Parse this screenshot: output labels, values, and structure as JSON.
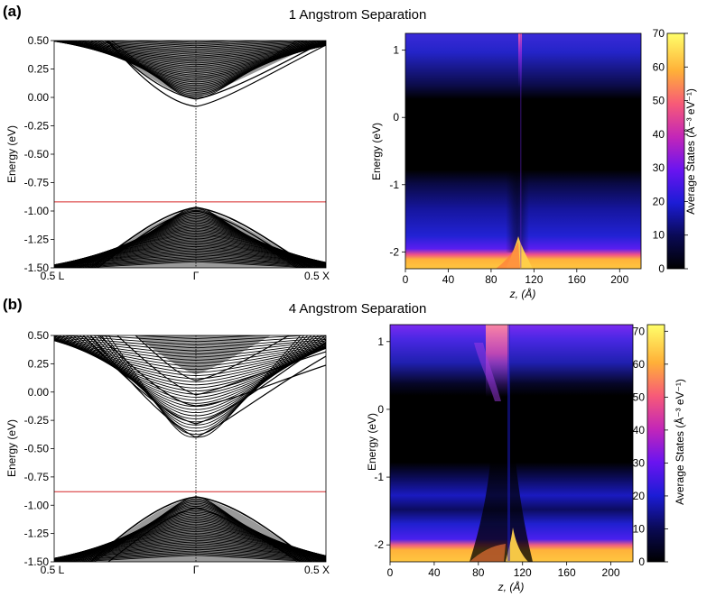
{
  "chart_data": [
    {
      "panel": "(a)",
      "title": "1 Angstrom Separation",
      "band": {
        "type": "line",
        "ylabel": "Energy (eV)",
        "ylim": [
          -1.5,
          0.5
        ],
        "yticks": [
          "0.50",
          "0.25",
          "0.00",
          "-0.25",
          "-0.50",
          "-0.75",
          "-1.00",
          "-1.25",
          "-1.50"
        ],
        "xticks": [
          "0.5 L",
          "Γ",
          "0.5 X"
        ],
        "fermi_line_energy": -0.92,
        "conduction_min_energy": 0.0,
        "valence_max_energy": -0.97,
        "conduction_band_color": "#000000",
        "fill_color": "#9a9a9a",
        "fermi_line_color": "#d62728"
      },
      "ldos": {
        "type": "heatmap",
        "xlabel": "z, (Å)",
        "ylabel": "Energy (eV)",
        "xlim": [
          0,
          220
        ],
        "ylim": [
          -2.25,
          1.25
        ],
        "xticks": [
          "0",
          "40",
          "80",
          "120",
          "160",
          "200"
        ],
        "yticks": [
          "1",
          "0",
          "-1",
          "-2"
        ],
        "interface_z": 110,
        "colorbar_label": "Average States (Å⁻³ eV⁻¹)",
        "colorbar_ticks": [
          "70",
          "60",
          "50",
          "40",
          "30",
          "20",
          "10",
          "0"
        ],
        "clim": [
          0,
          70
        ],
        "colormap": "gnuplot2"
      }
    },
    {
      "panel": "(b)",
      "title": "4 Angstrom Separation",
      "band": {
        "type": "line",
        "ylabel": "Energy (eV)",
        "ylim": [
          -1.5,
          0.5
        ],
        "yticks": [
          "0.50",
          "0.25",
          "0.00",
          "-0.25",
          "-0.50",
          "-0.75",
          "-1.00",
          "-1.25",
          "-1.50"
        ],
        "xticks": [
          "0.5 L",
          "Γ",
          "0.5 X"
        ],
        "fermi_line_energy": -0.88,
        "conduction_min_energy": -0.4,
        "valence_max_energy": -0.93,
        "conduction_band_color": "#000000",
        "fill_color": "#9a9a9a",
        "fermi_line_color": "#d62728"
      },
      "ldos": {
        "type": "heatmap",
        "xlabel": "z, (Å)",
        "ylabel": "Energy (eV)",
        "xlim": [
          0,
          220
        ],
        "ylim": [
          -2.25,
          1.25
        ],
        "xticks": [
          "0",
          "40",
          "80",
          "120",
          "160",
          "200"
        ],
        "yticks": [
          "1",
          "0",
          "-1",
          "-2"
        ],
        "interface_z": 100,
        "colorbar_label": "Average States (Å⁻³ eV⁻¹)",
        "colorbar_ticks": [
          "70",
          "60",
          "50",
          "40",
          "30",
          "20",
          "10",
          "0"
        ],
        "clim": [
          0,
          72
        ],
        "colormap": "gnuplot2"
      }
    }
  ]
}
